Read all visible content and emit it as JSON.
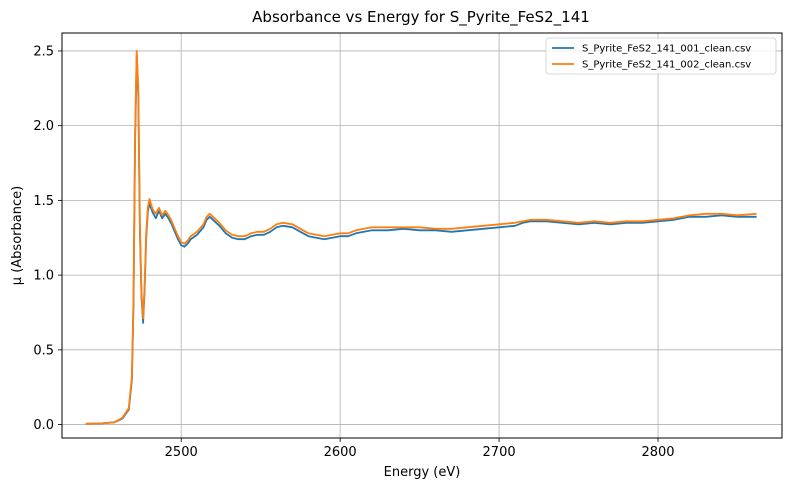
{
  "chart_data": {
    "type": "line",
    "title": "Absorbance vs Energy for S_Pyrite_FeS2_141",
    "xlabel": "Energy (eV)",
    "ylabel": "μ (Absorbance)",
    "xlim": [
      2425,
      2878
    ],
    "ylim": [
      -0.09,
      2.62
    ],
    "xticks": [
      2500,
      2600,
      2700,
      2800
    ],
    "yticks": [
      0.0,
      0.5,
      1.0,
      1.5,
      2.0,
      2.5
    ],
    "xtick_labels": [
      "2500",
      "2600",
      "2700",
      "2800"
    ],
    "ytick_labels": [
      "0.0",
      "0.5",
      "1.0",
      "1.5",
      "2.0",
      "2.5"
    ],
    "grid": true,
    "legend_position": "top-right",
    "series": [
      {
        "name": "S_Pyrite_FeS2_141_001_clean.csv",
        "color": "#1f77b4",
        "points": [
          [
            2440,
            0.005
          ],
          [
            2450,
            0.008
          ],
          [
            2458,
            0.015
          ],
          [
            2463,
            0.04
          ],
          [
            2467,
            0.1
          ],
          [
            2469,
            0.3
          ],
          [
            2470,
            0.8
          ],
          [
            2471,
            1.9
          ],
          [
            2472,
            2.47
          ],
          [
            2473,
            2.2
          ],
          [
            2474,
            1.3
          ],
          [
            2475,
            0.85
          ],
          [
            2476,
            0.68
          ],
          [
            2477,
            0.9
          ],
          [
            2478,
            1.25
          ],
          [
            2479,
            1.42
          ],
          [
            2480,
            1.48
          ],
          [
            2482,
            1.42
          ],
          [
            2484,
            1.38
          ],
          [
            2486,
            1.43
          ],
          [
            2488,
            1.38
          ],
          [
            2490,
            1.41
          ],
          [
            2492,
            1.38
          ],
          [
            2494,
            1.34
          ],
          [
            2496,
            1.29
          ],
          [
            2498,
            1.24
          ],
          [
            2500,
            1.2
          ],
          [
            2502,
            1.19
          ],
          [
            2504,
            1.21
          ],
          [
            2506,
            1.24
          ],
          [
            2510,
            1.27
          ],
          [
            2514,
            1.32
          ],
          [
            2516,
            1.37
          ],
          [
            2518,
            1.39
          ],
          [
            2520,
            1.37
          ],
          [
            2524,
            1.33
          ],
          [
            2528,
            1.28
          ],
          [
            2532,
            1.25
          ],
          [
            2536,
            1.24
          ],
          [
            2540,
            1.24
          ],
          [
            2544,
            1.26
          ],
          [
            2548,
            1.27
          ],
          [
            2552,
            1.27
          ],
          [
            2556,
            1.29
          ],
          [
            2560,
            1.32
          ],
          [
            2564,
            1.33
          ],
          [
            2570,
            1.32
          ],
          [
            2575,
            1.29
          ],
          [
            2580,
            1.26
          ],
          [
            2585,
            1.25
          ],
          [
            2590,
            1.24
          ],
          [
            2595,
            1.25
          ],
          [
            2600,
            1.26
          ],
          [
            2605,
            1.26
          ],
          [
            2610,
            1.28
          ],
          [
            2620,
            1.3
          ],
          [
            2630,
            1.3
          ],
          [
            2640,
            1.31
          ],
          [
            2650,
            1.3
          ],
          [
            2660,
            1.3
          ],
          [
            2670,
            1.29
          ],
          [
            2680,
            1.3
          ],
          [
            2690,
            1.31
          ],
          [
            2700,
            1.32
          ],
          [
            2710,
            1.33
          ],
          [
            2715,
            1.35
          ],
          [
            2720,
            1.36
          ],
          [
            2730,
            1.36
          ],
          [
            2740,
            1.35
          ],
          [
            2750,
            1.34
          ],
          [
            2760,
            1.35
          ],
          [
            2770,
            1.34
          ],
          [
            2780,
            1.35
          ],
          [
            2790,
            1.35
          ],
          [
            2800,
            1.36
          ],
          [
            2810,
            1.37
          ],
          [
            2820,
            1.39
          ],
          [
            2830,
            1.39
          ],
          [
            2840,
            1.4
          ],
          [
            2850,
            1.39
          ],
          [
            2862,
            1.39
          ]
        ]
      },
      {
        "name": "S_Pyrite_FeS2_141_002_clean.csv",
        "color": "#ff7f0e",
        "points": [
          [
            2440,
            0.005
          ],
          [
            2450,
            0.008
          ],
          [
            2458,
            0.016
          ],
          [
            2463,
            0.045
          ],
          [
            2467,
            0.11
          ],
          [
            2469,
            0.32
          ],
          [
            2470,
            0.85
          ],
          [
            2471,
            1.95
          ],
          [
            2472,
            2.5
          ],
          [
            2473,
            2.25
          ],
          [
            2474,
            1.35
          ],
          [
            2475,
            0.88
          ],
          [
            2476,
            0.71
          ],
          [
            2477,
            0.93
          ],
          [
            2478,
            1.28
          ],
          [
            2479,
            1.45
          ],
          [
            2480,
            1.51
          ],
          [
            2482,
            1.44
          ],
          [
            2484,
            1.41
          ],
          [
            2486,
            1.45
          ],
          [
            2488,
            1.4
          ],
          [
            2490,
            1.43
          ],
          [
            2492,
            1.4
          ],
          [
            2494,
            1.36
          ],
          [
            2496,
            1.31
          ],
          [
            2498,
            1.26
          ],
          [
            2500,
            1.22
          ],
          [
            2502,
            1.21
          ],
          [
            2504,
            1.23
          ],
          [
            2506,
            1.26
          ],
          [
            2510,
            1.29
          ],
          [
            2514,
            1.34
          ],
          [
            2516,
            1.39
          ],
          [
            2518,
            1.41
          ],
          [
            2520,
            1.39
          ],
          [
            2524,
            1.35
          ],
          [
            2528,
            1.3
          ],
          [
            2532,
            1.27
          ],
          [
            2536,
            1.26
          ],
          [
            2540,
            1.26
          ],
          [
            2544,
            1.28
          ],
          [
            2548,
            1.29
          ],
          [
            2552,
            1.29
          ],
          [
            2556,
            1.31
          ],
          [
            2560,
            1.34
          ],
          [
            2564,
            1.35
          ],
          [
            2570,
            1.34
          ],
          [
            2575,
            1.31
          ],
          [
            2580,
            1.28
          ],
          [
            2585,
            1.27
          ],
          [
            2590,
            1.26
          ],
          [
            2595,
            1.27
          ],
          [
            2600,
            1.28
          ],
          [
            2605,
            1.28
          ],
          [
            2610,
            1.3
          ],
          [
            2620,
            1.32
          ],
          [
            2630,
            1.32
          ],
          [
            2640,
            1.32
          ],
          [
            2650,
            1.32
          ],
          [
            2660,
            1.31
          ],
          [
            2670,
            1.31
          ],
          [
            2680,
            1.32
          ],
          [
            2690,
            1.33
          ],
          [
            2700,
            1.34
          ],
          [
            2710,
            1.35
          ],
          [
            2715,
            1.36
          ],
          [
            2720,
            1.37
          ],
          [
            2730,
            1.37
          ],
          [
            2740,
            1.36
          ],
          [
            2750,
            1.35
          ],
          [
            2760,
            1.36
          ],
          [
            2770,
            1.35
          ],
          [
            2780,
            1.36
          ],
          [
            2790,
            1.36
          ],
          [
            2800,
            1.37
          ],
          [
            2810,
            1.38
          ],
          [
            2820,
            1.4
          ],
          [
            2830,
            1.41
          ],
          [
            2840,
            1.41
          ],
          [
            2850,
            1.4
          ],
          [
            2862,
            1.41
          ]
        ]
      }
    ]
  }
}
